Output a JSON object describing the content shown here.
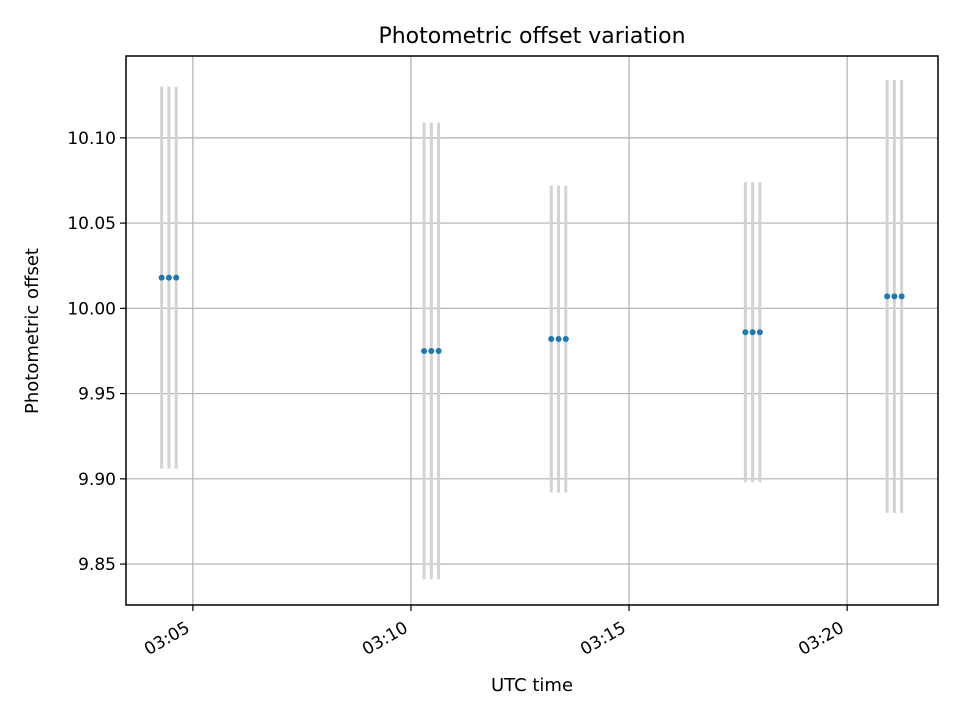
{
  "chart_data": {
    "type": "scatter",
    "title": "Photometric offset variation",
    "xlabel": "UTC time",
    "ylabel": "Photometric offset",
    "x_ticks": [
      "03:05",
      "03:10",
      "03:15",
      "03:20"
    ],
    "y_ticks": [
      "9.85",
      "9.90",
      "9.95",
      "10.00",
      "10.05",
      "10.10"
    ],
    "xlim": [
      "03:03:28",
      "03:22:05"
    ],
    "ylim": [
      9.826,
      10.148
    ],
    "grid": true,
    "marker_color": "#1f77b4",
    "errorbar_color": "#d3d3d3",
    "points": [
      {
        "x": "03:04:17",
        "y": 10.018,
        "yerr": 0.112
      },
      {
        "x": "03:04:27",
        "y": 10.018,
        "yerr": 0.112
      },
      {
        "x": "03:04:37",
        "y": 10.018,
        "yerr": 0.112
      },
      {
        "x": "03:10:18",
        "y": 9.975,
        "yerr": 0.134
      },
      {
        "x": "03:10:28",
        "y": 9.975,
        "yerr": 0.134
      },
      {
        "x": "03:10:38",
        "y": 9.975,
        "yerr": 0.134
      },
      {
        "x": "03:13:13",
        "y": 9.982,
        "yerr": 0.09
      },
      {
        "x": "03:13:23",
        "y": 9.982,
        "yerr": 0.09
      },
      {
        "x": "03:13:33",
        "y": 9.982,
        "yerr": 0.09
      },
      {
        "x": "03:17:40",
        "y": 9.986,
        "yerr": 0.088
      },
      {
        "x": "03:17:50",
        "y": 9.986,
        "yerr": 0.088
      },
      {
        "x": "03:18:00",
        "y": 9.986,
        "yerr": 0.088
      },
      {
        "x": "03:20:55",
        "y": 10.007,
        "yerr": 0.127
      },
      {
        "x": "03:21:05",
        "y": 10.007,
        "yerr": 0.127
      },
      {
        "x": "03:21:15",
        "y": 10.007,
        "yerr": 0.127
      }
    ]
  }
}
